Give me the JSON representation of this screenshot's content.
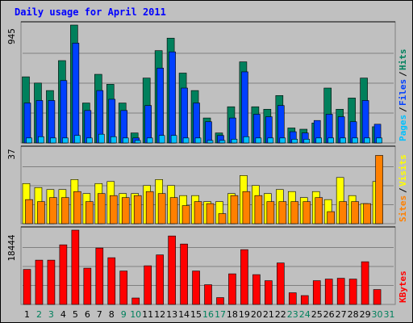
{
  "chart_data": [
    {
      "type": "bar",
      "title": "Daily usage for April 2011",
      "scale_max_label": "945",
      "ylim": [
        0,
        945
      ],
      "categories": [
        "1",
        "2",
        "3",
        "4",
        "5",
        "6",
        "7",
        "8",
        "9",
        "10",
        "11",
        "12",
        "13",
        "14",
        "15",
        "16",
        "17",
        "18",
        "19",
        "20",
        "21",
        "22",
        "23",
        "24",
        "25",
        "26",
        "27",
        "28",
        "29",
        "30",
        "31"
      ],
      "weekend_days": [
        "2",
        "3",
        "9",
        "10",
        "16",
        "17",
        "23",
        "24",
        "30",
        "31"
      ],
      "series": [
        {
          "name": "Hits",
          "color": "#00805c",
          "values": [
            530,
            480,
            420,
            660,
            945,
            320,
            550,
            470,
            320,
            80,
            520,
            740,
            840,
            560,
            420,
            200,
            80,
            290,
            650,
            290,
            270,
            380,
            120,
            110,
            160,
            440,
            270,
            360,
            520,
            130,
            0
          ]
        },
        {
          "name": "Files",
          "color": "#0040ff",
          "values": [
            320,
            340,
            340,
            500,
            800,
            260,
            420,
            350,
            260,
            40,
            300,
            600,
            730,
            440,
            320,
            170,
            60,
            200,
            570,
            230,
            210,
            300,
            90,
            80,
            180,
            230,
            210,
            170,
            340,
            150,
            0
          ]
        },
        {
          "name": "Pages",
          "color": "#00c0ff",
          "values": [
            40,
            50,
            40,
            40,
            60,
            40,
            70,
            50,
            40,
            20,
            40,
            60,
            60,
            40,
            40,
            20,
            20,
            30,
            50,
            40,
            40,
            40,
            30,
            30,
            40,
            40,
            40,
            40,
            40,
            40,
            0
          ]
        }
      ],
      "legend": "right-vertical",
      "grid": true
    },
    {
      "type": "bar",
      "scale_max_label": "37",
      "ylim": [
        0,
        37
      ],
      "categories": [
        "1",
        "2",
        "3",
        "4",
        "5",
        "6",
        "7",
        "8",
        "9",
        "10",
        "11",
        "12",
        "13",
        "14",
        "15",
        "16",
        "17",
        "18",
        "19",
        "20",
        "21",
        "22",
        "23",
        "24",
        "25",
        "26",
        "27",
        "28",
        "29",
        "30",
        "31"
      ],
      "series": [
        {
          "name": "Visits",
          "color": "#ffff00",
          "values": [
            20,
            18,
            17,
            17,
            22,
            15,
            20,
            21,
            15,
            15,
            19,
            22,
            19,
            14,
            14,
            11,
            11,
            15,
            24,
            19,
            15,
            17,
            16,
            13,
            16,
            12,
            23,
            14,
            10,
            21,
            0
          ]
        },
        {
          "name": "Sites",
          "color": "#ff8000",
          "values": [
            12,
            11,
            13,
            13,
            16,
            11,
            15,
            14,
            13,
            14,
            16,
            15,
            13,
            9,
            11,
            10,
            5,
            14,
            16,
            14,
            11,
            11,
            11,
            11,
            13,
            6,
            11,
            11,
            10,
            34,
            0
          ]
        }
      ],
      "legend": "right-vertical",
      "grid": true
    },
    {
      "type": "bar",
      "scale_max_label": "18444",
      "ylim": [
        0,
        18444
      ],
      "categories": [
        "1",
        "2",
        "3",
        "4",
        "5",
        "6",
        "7",
        "8",
        "9",
        "10",
        "11",
        "12",
        "13",
        "14",
        "15",
        "16",
        "17",
        "18",
        "19",
        "20",
        "21",
        "22",
        "23",
        "24",
        "25",
        "26",
        "27",
        "28",
        "29",
        "30",
        "31"
      ],
      "series": [
        {
          "name": "KBytes",
          "color": "#ff0000",
          "values": [
            8700,
            11000,
            11000,
            14800,
            18444,
            9000,
            14000,
            11600,
            8300,
            1600,
            9600,
            12300,
            17000,
            15000,
            8300,
            4900,
            1700,
            7600,
            13600,
            7400,
            5900,
            10300,
            2900,
            2200,
            5900,
            6300,
            6500,
            6300,
            10600,
            3700,
            0
          ]
        }
      ],
      "legend": "right-vertical",
      "grid": true
    }
  ]
}
